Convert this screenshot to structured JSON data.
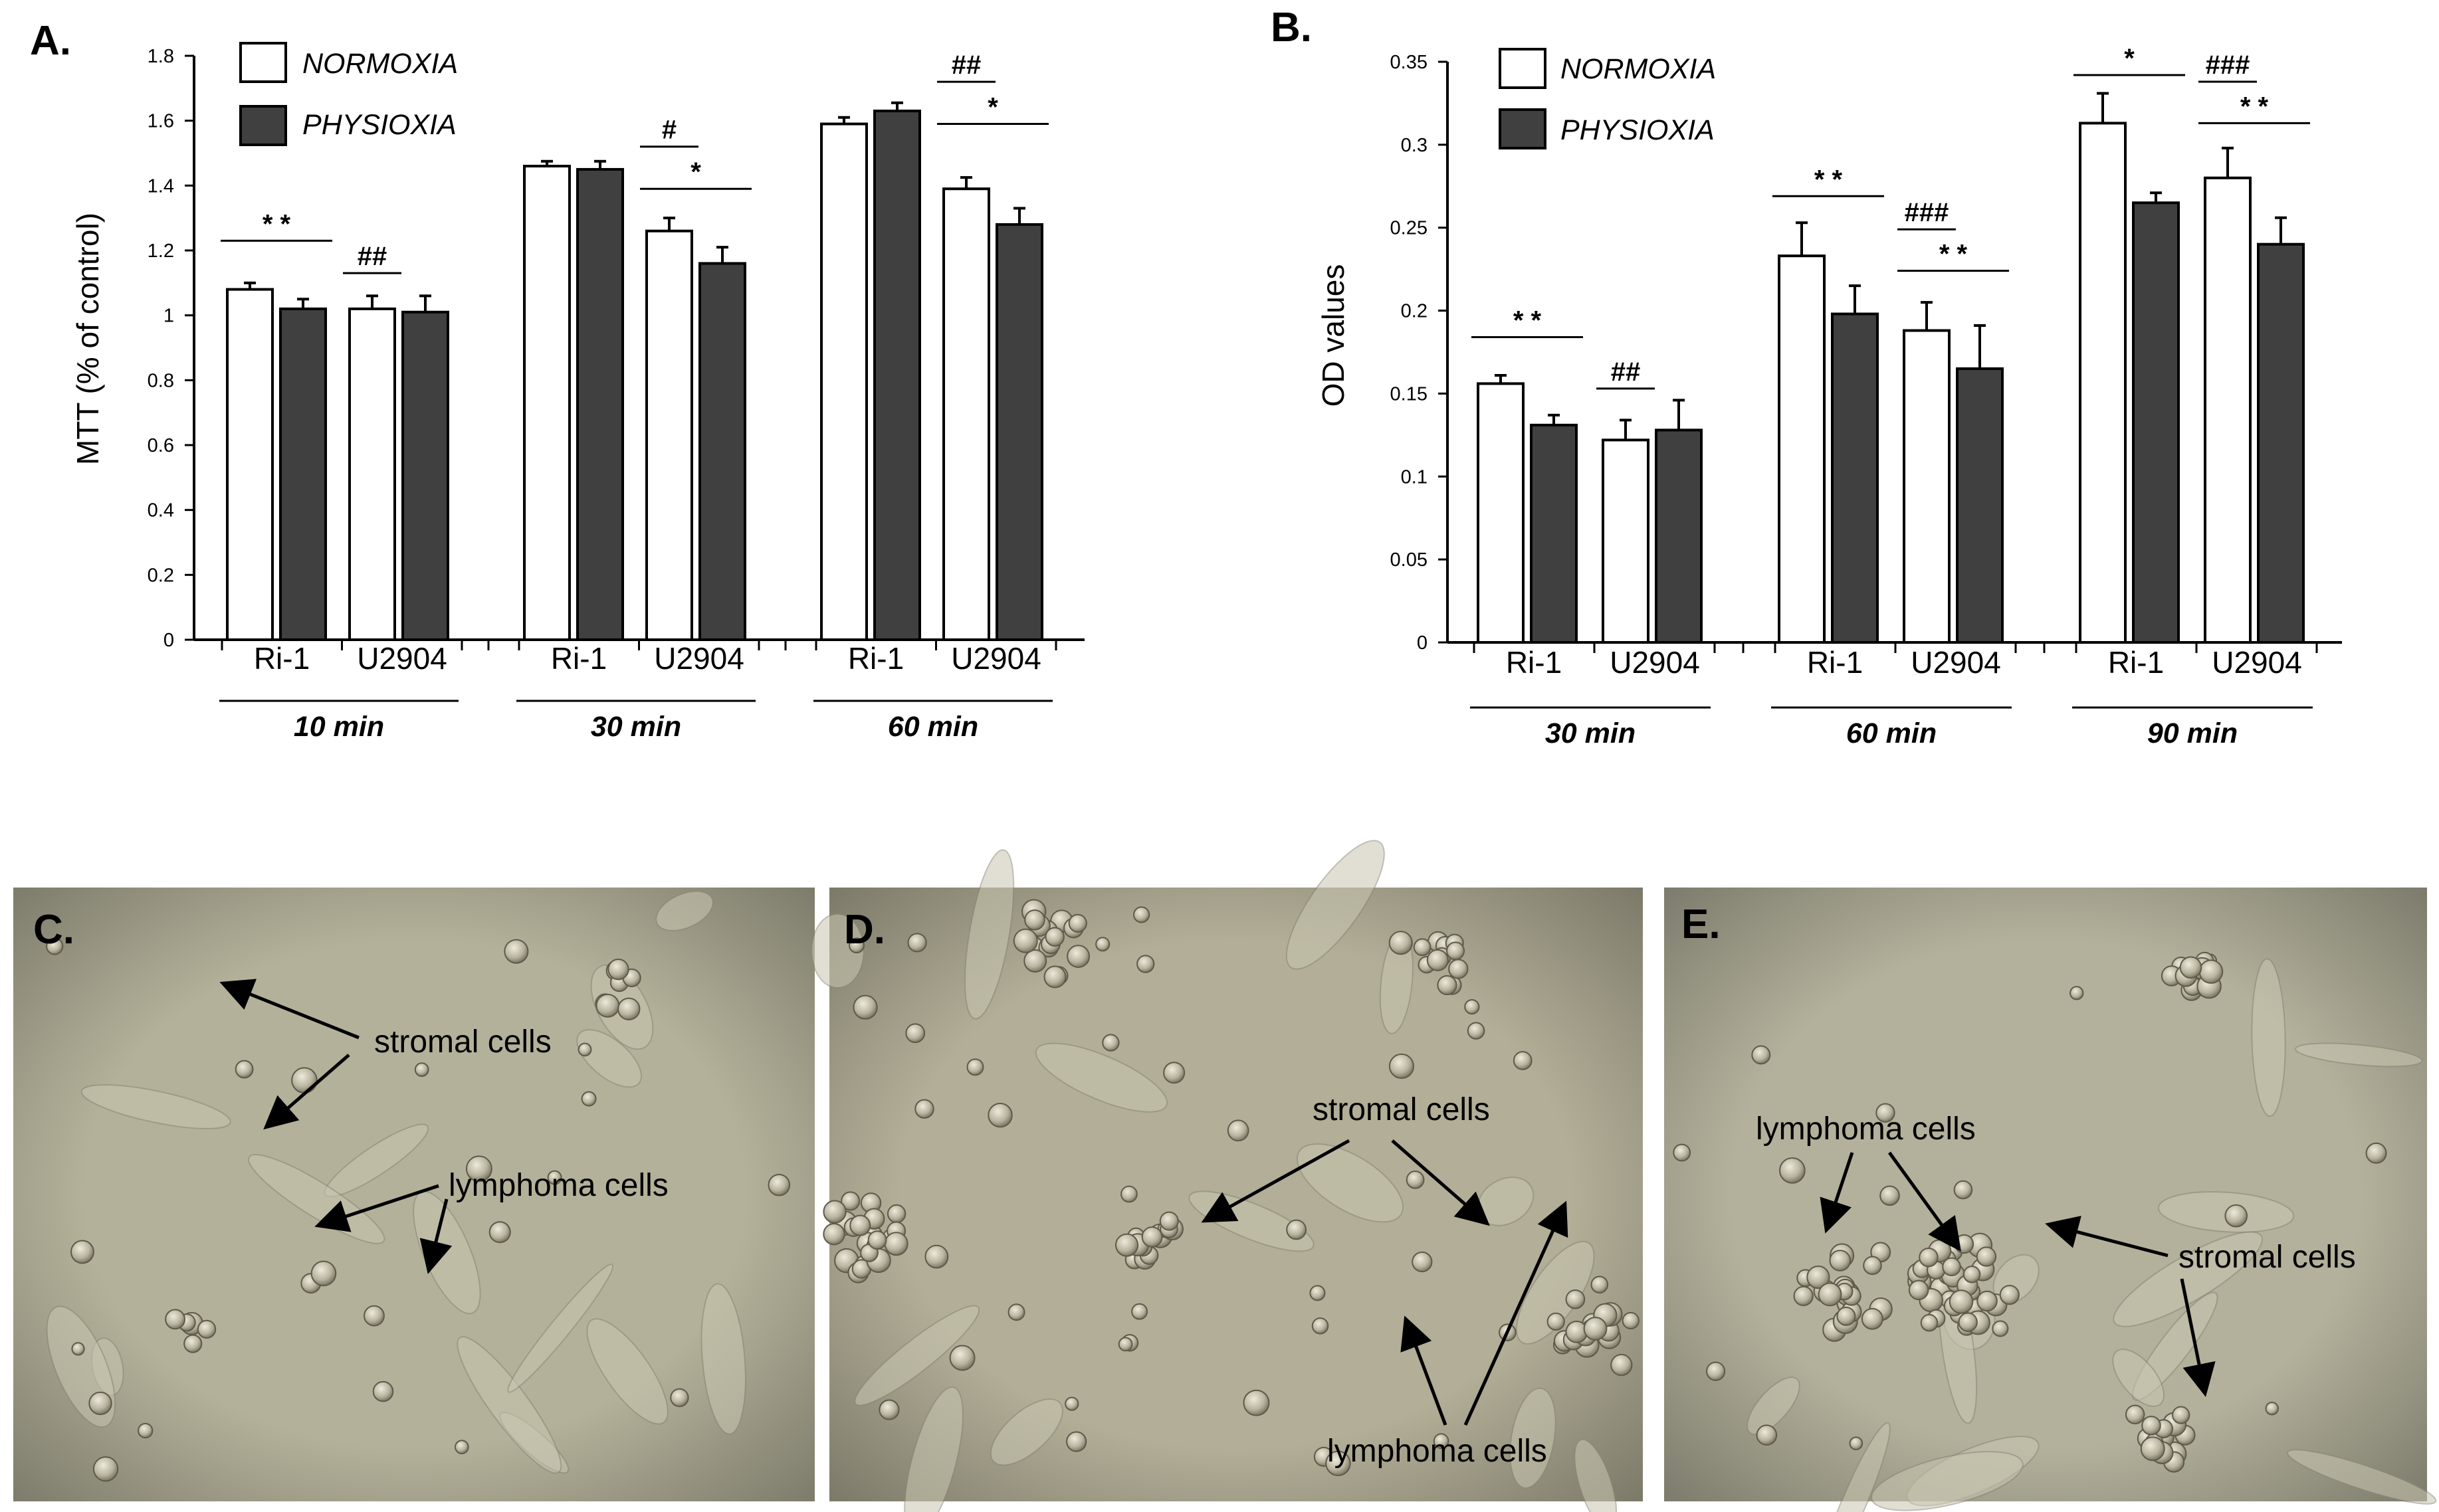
{
  "colors": {
    "normoxia": "#ffffff",
    "physioxia": "#404040",
    "axis": "#000000"
  },
  "legend": [
    "NORMOXIA",
    "PHYSIOXIA"
  ],
  "chart_data": [
    {
      "panel": "A.",
      "type": "bar",
      "ylabel": "MTT (% of control)",
      "ylim": [
        0,
        1.8
      ],
      "yticks": [
        0,
        0.2,
        0.4,
        0.6,
        0.8,
        1,
        1.2,
        1.4,
        1.6,
        1.8
      ],
      "ytick_labels": [
        "0",
        "0.2",
        "0.4",
        "0.6",
        "0.8",
        "1",
        "1.2",
        "1.4",
        "1.6",
        "1.8"
      ],
      "grid": false,
      "legend_position": "top-left",
      "groups": [
        "10 min",
        "30 min",
        "60 min"
      ],
      "cell_lines": [
        "Ri-1",
        "U2904"
      ],
      "series": [
        {
          "name": "NORMOXIA",
          "values": [
            1.08,
            1.02,
            1.46,
            1.26,
            1.59,
            1.39
          ],
          "errors": [
            0.02,
            0.04,
            0.015,
            0.04,
            0.02,
            0.035
          ]
        },
        {
          "name": "PHYSIOXIA",
          "values": [
            1.02,
            1.01,
            1.45,
            1.16,
            1.63,
            1.28
          ],
          "errors": [
            0.03,
            0.05,
            0.025,
            0.05,
            0.025,
            0.05
          ]
        }
      ],
      "annotations": [
        {
          "text": "* *",
          "from": [
            0,
            0
          ],
          "to": [
            0,
            1
          ],
          "level": 1.23
        },
        {
          "text": "##",
          "from": [
            0,
            2
          ],
          "to": [
            0,
            2
          ],
          "level": 1.13
        },
        {
          "text": "#",
          "from": [
            1,
            2
          ],
          "to": [
            1,
            2
          ],
          "level": 1.52
        },
        {
          "text": "*",
          "from": [
            1,
            2
          ],
          "to": [
            1,
            3
          ],
          "level": 1.39
        },
        {
          "text": "##",
          "from": [
            2,
            2
          ],
          "to": [
            2,
            2
          ],
          "level": 1.72
        },
        {
          "text": "*",
          "from": [
            2,
            2
          ],
          "to": [
            2,
            3
          ],
          "level": 1.59
        }
      ]
    },
    {
      "panel": "B.",
      "type": "bar",
      "ylabel": "OD values",
      "ylim": [
        0,
        0.35
      ],
      "yticks": [
        0,
        0.05,
        0.1,
        0.15,
        0.2,
        0.25,
        0.3,
        0.35
      ],
      "ytick_labels": [
        "0",
        "0.05",
        "0.1",
        "0.15",
        "0.2",
        "0.25",
        "0.3",
        "0.35"
      ],
      "grid": false,
      "legend_position": "top-left",
      "groups": [
        "30 min",
        "60 min",
        "90 min"
      ],
      "cell_lines": [
        "Ri-1",
        "U2904"
      ],
      "series": [
        {
          "name": "NORMOXIA",
          "values": [
            0.156,
            0.122,
            0.233,
            0.188,
            0.313,
            0.28
          ],
          "errors": [
            0.005,
            0.012,
            0.02,
            0.017,
            0.018,
            0.018
          ]
        },
        {
          "name": "PHYSIOXIA",
          "values": [
            0.131,
            0.128,
            0.198,
            0.165,
            0.265,
            0.24
          ],
          "errors": [
            0.006,
            0.018,
            0.017,
            0.026,
            0.006,
            0.016
          ]
        }
      ],
      "annotations": [
        {
          "text": "* *",
          "from": [
            0,
            0
          ],
          "to": [
            0,
            1
          ],
          "level": 0.184
        },
        {
          "text": "##",
          "from": [
            0,
            2
          ],
          "to": [
            0,
            2
          ],
          "level": 0.153
        },
        {
          "text": "* *",
          "from": [
            1,
            0
          ],
          "to": [
            1,
            1
          ],
          "level": 0.269
        },
        {
          "text": "###",
          "from": [
            1,
            2
          ],
          "to": [
            1,
            2
          ],
          "level": 0.249
        },
        {
          "text": "* *",
          "from": [
            1,
            2
          ],
          "to": [
            1,
            3
          ],
          "level": 0.224
        },
        {
          "text": "*",
          "from": [
            2,
            0
          ],
          "to": [
            2,
            1
          ],
          "level": 0.342
        },
        {
          "text": "###",
          "from": [
            2,
            2
          ],
          "to": [
            2,
            2
          ],
          "level": 0.338
        },
        {
          "text": "* *",
          "from": [
            2,
            2
          ],
          "to": [
            2,
            3
          ],
          "level": 0.313
        }
      ]
    }
  ],
  "photos": [
    {
      "panel": "C.",
      "labels": [
        "stromal cells",
        "lymphoma cells"
      ]
    },
    {
      "panel": "D.",
      "labels": [
        "stromal cells",
        "lymphoma cells"
      ]
    },
    {
      "panel": "E.",
      "labels": [
        "lymphoma cells",
        "stromal cells"
      ]
    }
  ]
}
